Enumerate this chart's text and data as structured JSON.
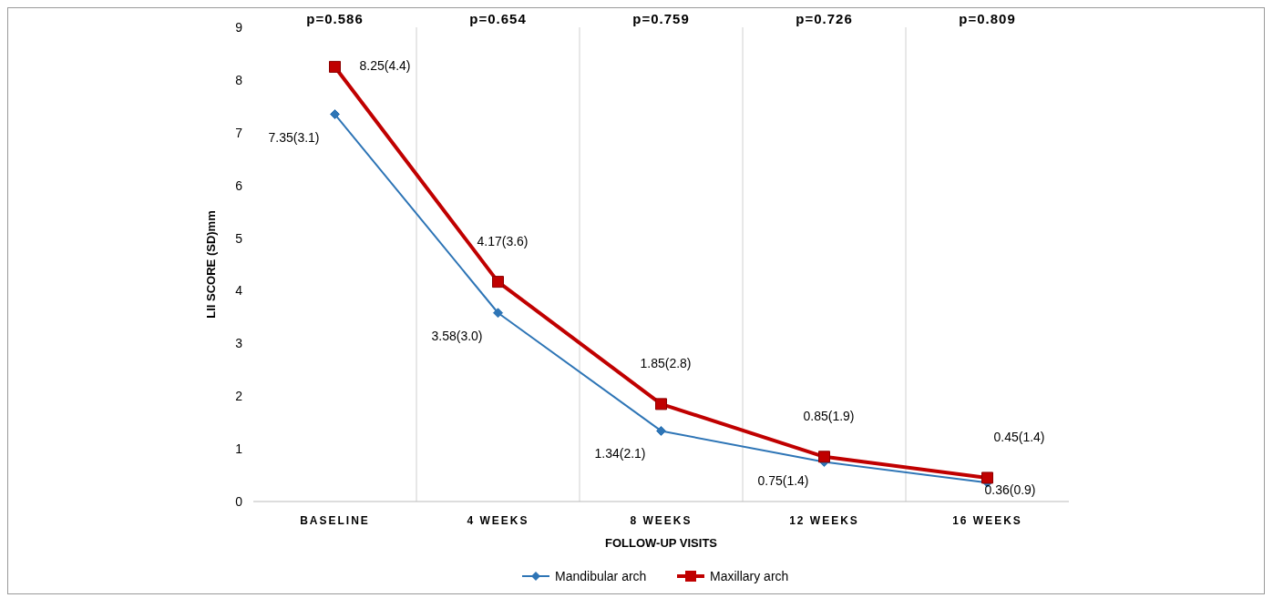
{
  "chart_data": {
    "type": "line",
    "xlabel": "FOLLOW-UP VISITS",
    "ylabel": "LII SCORE (SD)mm",
    "categories": [
      "BASELINE",
      "4 WEEKS",
      "8 WEEKS",
      "12 WEEKS",
      "16 WEEKS"
    ],
    "annotations": [
      "p=0.586",
      "p=0.654",
      "p=0.759",
      "p=0.726",
      "p=0.809"
    ],
    "series": [
      {
        "name": "Mandibular arch",
        "color": "#2e75b6",
        "marker": "diamond",
        "values": [
          7.35,
          3.58,
          1.34,
          0.75,
          0.36
        ],
        "value_labels": [
          "7.35(3.1)",
          "3.58(3.0)",
          "1.34(2.1)",
          "0.75(1.4)",
          "0.36(0.9)"
        ]
      },
      {
        "name": "Maxillary arch",
        "color": "#c00000",
        "marker": "square",
        "values": [
          8.25,
          4.17,
          1.85,
          0.85,
          0.45
        ],
        "value_labels": [
          "8.25(4.4)",
          "4.17(3.6)",
          "1.85(2.8)",
          "0.85(1.9)",
          "0.45(1.4)"
        ]
      }
    ],
    "ylim": [
      0,
      9
    ],
    "yticks": [
      0,
      1,
      2,
      3,
      4,
      5,
      6,
      7,
      8,
      9
    ],
    "grid": "x",
    "legend": "bottom"
  }
}
